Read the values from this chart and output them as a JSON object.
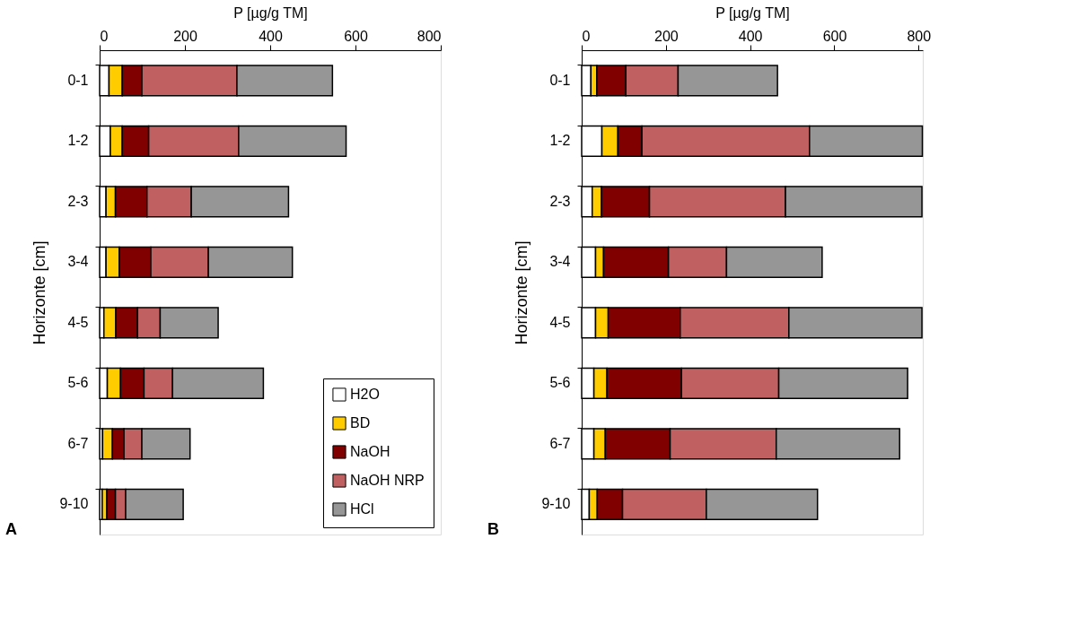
{
  "chart_data": [
    {
      "type": "bar",
      "orientation": "horizontal",
      "stacked": true,
      "xlabel": "P [µg/g TM]",
      "ylabel": "Horizonte [cm]",
      "categories": [
        "0-1",
        "1-2",
        "2-3",
        "3-4",
        "4-5",
        "5-6",
        "6-7",
        "9-10"
      ],
      "xlim": [
        0,
        800
      ],
      "xticks": [
        0,
        200,
        400,
        600,
        800
      ],
      "legend": "bottom right",
      "annotations": [
        "A"
      ],
      "series": [
        {
          "name": "H2O",
          "color": "#ffffff",
          "values": [
            22,
            25,
            15,
            15,
            10,
            18,
            7,
            6
          ]
        },
        {
          "name": "BD",
          "color": "#ffcc00",
          "values": [
            31,
            28,
            22,
            31,
            28,
            31,
            23,
            11
          ]
        },
        {
          "name": "NaOH",
          "color": "#800000",
          "values": [
            46,
            62,
            74,
            74,
            51,
            55,
            27,
            20
          ]
        },
        {
          "name": "NaOH NRP",
          "color": "#c06060",
          "values": [
            223,
            211,
            104,
            135,
            53,
            67,
            42,
            24
          ]
        },
        {
          "name": "HCl",
          "color": "#969696",
          "values": [
            224,
            252,
            228,
            197,
            136,
            213,
            113,
            135
          ]
        }
      ]
    },
    {
      "type": "bar",
      "orientation": "horizontal",
      "stacked": true,
      "xlabel": "P [µg/g TM]",
      "ylabel": "Horizonte [cm]",
      "categories": [
        "0-1",
        "1-2",
        "2-3",
        "3-4",
        "4-5",
        "5-6",
        "6-7",
        "9-10"
      ],
      "xlim": [
        0,
        810
      ],
      "xticks": [
        0,
        200,
        400,
        600,
        800
      ],
      "annotations": [
        "B"
      ],
      "series": [
        {
          "color": "#ffffff",
          "values": [
            22,
            48,
            25,
            33,
            33,
            29,
            29,
            18
          ]
        },
        {
          "color": "#ffcc00",
          "values": [
            14,
            38,
            22,
            19,
            30,
            31,
            27,
            19
          ]
        },
        {
          "color": "#800000",
          "values": [
            69,
            57,
            114,
            154,
            171,
            177,
            154,
            60
          ]
        },
        {
          "color": "#c06060",
          "values": [
            124,
            398,
            323,
            138,
            258,
            231,
            252,
            199
          ]
        },
        {
          "color": "#969696",
          "values": [
            236,
            268,
            324,
            227,
            316,
            306,
            293,
            264
          ]
        }
      ]
    }
  ]
}
